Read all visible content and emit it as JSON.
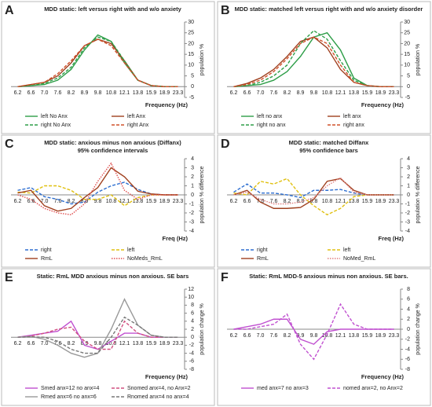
{
  "chart_data": [
    {
      "type": "line",
      "label": "A",
      "title": "MDD static: left versus right with and w/o anxiety",
      "x_label": "Frequency (Hz)",
      "y_label": "population %",
      "categories": [
        "6.2",
        "6.6",
        "7.0",
        "7.6",
        "8.2",
        "8.9",
        "9.8",
        "10.8",
        "12.1",
        "13.8",
        "15.9",
        "18.9",
        "23.3"
      ],
      "ylim": [
        -5,
        30
      ],
      "yticks": [
        -5,
        0,
        5,
        10,
        15,
        20,
        25,
        30
      ],
      "series": [
        {
          "name": "left No Anx",
          "color": "#2e9e48",
          "dash": "solid",
          "values": [
            0,
            0.5,
            1,
            3,
            8,
            17,
            24,
            21,
            11,
            3,
            0.5,
            0,
            0
          ]
        },
        {
          "name": "left Anx",
          "color": "#a0401f",
          "dash": "solid",
          "values": [
            0,
            1,
            2,
            5,
            11,
            19,
            22,
            20,
            12,
            3,
            0.5,
            0,
            0
          ]
        },
        {
          "name": "right No Anx",
          "color": "#2e9e48",
          "dash": "dashed",
          "values": [
            0,
            0.5,
            1.5,
            4,
            9,
            18,
            23,
            21,
            12,
            3,
            0.5,
            0,
            0
          ]
        },
        {
          "name": "right Anx",
          "color": "#d0502a",
          "dash": "dashed",
          "values": [
            0,
            1,
            2,
            6,
            12,
            19,
            22,
            19,
            11,
            3,
            0.5,
            0,
            0
          ]
        }
      ]
    },
    {
      "type": "line",
      "label": "B",
      "title": "MDD static: matched left versus right with and w/o anxiety disorder",
      "x_label": "Frequency (Hz)",
      "y_label": "population %",
      "categories": [
        "6.2",
        "6.6",
        "7.0",
        "7.6",
        "8.2",
        "8.9",
        "9.8",
        "10.8",
        "12.1",
        "13.8",
        "15.9",
        "18.9",
        "23.3"
      ],
      "ylim": [
        -5,
        30
      ],
      "yticks": [
        -5,
        0,
        5,
        10,
        15,
        20,
        25,
        30
      ],
      "series": [
        {
          "name": "left no anx",
          "color": "#2e9e48",
          "dash": "solid",
          "values": [
            0,
            0.5,
            1,
            3,
            7,
            14,
            23,
            25,
            17,
            4,
            0.5,
            0,
            0
          ]
        },
        {
          "name": "left anx",
          "color": "#a0401f",
          "dash": "solid",
          "values": [
            0,
            1.5,
            4,
            8,
            14,
            21,
            23,
            18,
            8,
            2,
            0.5,
            0,
            0
          ]
        },
        {
          "name": "right no anx",
          "color": "#2e9e48",
          "dash": "dashed",
          "values": [
            0,
            0.5,
            2,
            5,
            10,
            20,
            26,
            22,
            12,
            3,
            0.5,
            0,
            0
          ]
        },
        {
          "name": "right anx",
          "color": "#d0502a",
          "dash": "dashed",
          "values": [
            0,
            1,
            3,
            7,
            13,
            20,
            23,
            20,
            10,
            2,
            0.5,
            0,
            0
          ]
        }
      ]
    },
    {
      "type": "line",
      "label": "C",
      "title": "MDD static: anxious minus non anxious (Diffanx)",
      "subtitle": "95% confidence intervals",
      "x_label": "Freq (Hz)",
      "y_label": "population % difference",
      "categories": [
        "6.2",
        "6.6",
        "7.0",
        "7.6",
        "8.2",
        "8.9",
        "9.8",
        "10.8",
        "12.1",
        "13.8",
        "15.9",
        "18.9",
        "23.3"
      ],
      "ylim": [
        -4,
        4
      ],
      "yticks": [
        -4,
        -3,
        -2,
        -1,
        0,
        1,
        2,
        3,
        4
      ],
      "series": [
        {
          "name": "right",
          "color": "#2e6fd1",
          "dash": "dashed",
          "values": [
            0.5,
            0.8,
            -0.2,
            -0.5,
            -1,
            -0.8,
            0.3,
            1,
            1.4,
            0.6,
            0.1,
            0,
            0
          ]
        },
        {
          "name": "left",
          "color": "#e0c010",
          "dash": "dashed",
          "values": [
            0.3,
            0.2,
            1,
            1,
            0.5,
            -0.5,
            -0.5,
            0,
            -1.2,
            -0.3,
            0,
            0,
            0
          ]
        },
        {
          "name": "RmL",
          "color": "#a0401f",
          "dash": "solid",
          "values": [
            0.2,
            0.5,
            -1.2,
            -1.8,
            -1.5,
            -0.3,
            0.8,
            3,
            2,
            0.4,
            0.1,
            0,
            0
          ]
        },
        {
          "name": "NoMeds_RmL",
          "color": "#e05050",
          "dash": "dotted",
          "values": [
            0,
            -0.5,
            -1.5,
            -2,
            -2.2,
            -1,
            1.5,
            3.5,
            0.5,
            -0.5,
            0,
            0,
            0
          ]
        }
      ]
    },
    {
      "type": "line",
      "label": "D",
      "title": "MDD static: matched Diffanx",
      "subtitle": "95% confidence bars",
      "x_label": "Freq (Hz)",
      "y_label": "population % difference",
      "categories": [
        "6.2",
        "6.6",
        "7.0",
        "7.6",
        "8.2",
        "8.9",
        "9.8",
        "10.8",
        "12.1",
        "13.8",
        "15.9",
        "18.9",
        "23.3"
      ],
      "ylim": [
        -4,
        4
      ],
      "yticks": [
        -4,
        -3,
        -2,
        -1,
        0,
        1,
        2,
        3,
        4
      ],
      "series": [
        {
          "name": "right",
          "color": "#2e6fd1",
          "dash": "dashed",
          "values": [
            0.3,
            1.2,
            0.2,
            0.2,
            0,
            -0.3,
            0.5,
            0.5,
            0.6,
            0.2,
            0,
            0,
            0
          ]
        },
        {
          "name": "left",
          "color": "#e0c010",
          "dash": "dashed",
          "values": [
            0.2,
            0,
            1.5,
            1.2,
            1.8,
            0,
            -1.2,
            -2.2,
            -1.5,
            -0.2,
            0,
            0,
            0
          ]
        },
        {
          "name": "RmL",
          "color": "#a0401f",
          "dash": "solid",
          "values": [
            0,
            0.5,
            -0.8,
            -1.5,
            -1.5,
            -1.4,
            -0.5,
            1.5,
            1.8,
            0.5,
            0,
            0,
            0
          ]
        },
        {
          "name": "NoMed_RmL",
          "color": "#e08080",
          "dash": "dotted",
          "values": [
            0,
            0.3,
            -0.5,
            -1,
            -1,
            -0.8,
            -0.3,
            1,
            1.9,
            0.3,
            0,
            0,
            0
          ]
        }
      ]
    },
    {
      "type": "line",
      "label": "E",
      "title": "Static: RmL MDD anxious minus non anxious. SE bars",
      "x_label": "Frequency (Hz)",
      "y_label": "population change %",
      "categories": [
        "6.2",
        "6.6",
        "7.0",
        "7.6",
        "8.2",
        "8.9",
        "9.8",
        "10.8",
        "12.1",
        "13.8",
        "15.9",
        "18.9",
        "23.3"
      ],
      "ylim": [
        -8,
        12
      ],
      "yticks": [
        -8,
        -6,
        -4,
        -2,
        0,
        2,
        4,
        6,
        8,
        10,
        12
      ],
      "series": [
        {
          "name": "Smed anx=12 no anx=4",
          "color": "#c050d0",
          "dash": "solid",
          "values": [
            0,
            0.5,
            1,
            1.5,
            4,
            -2,
            -3,
            -1,
            1,
            1,
            0,
            0,
            0
          ]
        },
        {
          "name": "Snomed anx=4, no Anx=2",
          "color": "#d05080",
          "dash": "dashed",
          "values": [
            0,
            0.3,
            1,
            2,
            2.5,
            -1,
            -3,
            -3,
            4,
            1,
            0,
            0,
            0
          ]
        },
        {
          "name": "Rmed anx=6 no anx=6",
          "color": "#999999",
          "dash": "solid",
          "values": [
            0,
            0.2,
            -0.5,
            -2,
            -4,
            -5,
            -4,
            2,
            9.5,
            3,
            0.5,
            0,
            0
          ]
        },
        {
          "name": "Rnomed anx=4 no anx=4",
          "color": "#777777",
          "dash": "dashed",
          "values": [
            0,
            0.1,
            0,
            -1,
            -3,
            -4,
            -4,
            0,
            5,
            3,
            0.5,
            0,
            0
          ]
        }
      ]
    },
    {
      "type": "line",
      "label": "F",
      "title": "Static: RmL MDD-5 anxious minus non anxious. SE bars.",
      "x_label": "Frequency (Hz)",
      "y_label": "population change %",
      "categories": [
        "6.2",
        "6.6",
        "7.0",
        "7.6",
        "8.2",
        "8.9",
        "9.8",
        "10.8",
        "12.1",
        "13.8",
        "15.9",
        "18.9",
        "23.3"
      ],
      "ylim": [
        -8,
        8
      ],
      "yticks": [
        -8,
        -6,
        -4,
        -2,
        0,
        2,
        4,
        6,
        8
      ],
      "series": [
        {
          "name": "med anx=7 no anx=3",
          "color": "#c050d0",
          "dash": "solid",
          "values": [
            0,
            0.5,
            1,
            2,
            2,
            -2,
            -3,
            -0.5,
            0,
            0,
            0,
            0,
            0
          ]
        },
        {
          "name": "nomed anx=2, no Anx=2",
          "color": "#c050d0",
          "dash": "dashed",
          "values": [
            0,
            0,
            0.5,
            1,
            3,
            -3,
            -6,
            -1,
            5,
            1,
            0,
            0,
            0
          ]
        }
      ]
    }
  ]
}
